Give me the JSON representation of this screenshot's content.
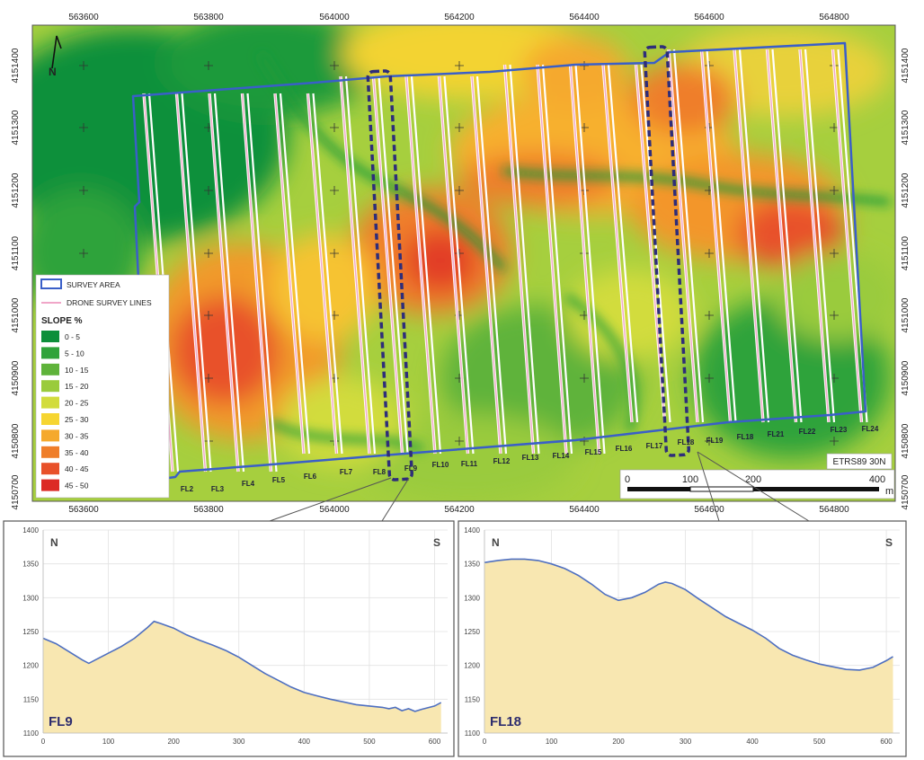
{
  "map": {
    "x_ticks": [
      "563600",
      "563800",
      "564000",
      "564200",
      "564400",
      "564600",
      "564800"
    ],
    "y_ticks": [
      "4151400",
      "4151300",
      "4151200",
      "4151100",
      "4151000",
      "4150900",
      "4150800",
      "4150700"
    ],
    "north_label": "N",
    "crs_label": "ETRS89 30N",
    "flight_lines": [
      "FL2",
      "FL3",
      "FL4",
      "FL5",
      "FL6",
      "FL7",
      "FL8",
      "FL9",
      "FL10",
      "FL11",
      "FL12",
      "FL13",
      "FL14",
      "FL15",
      "FL16",
      "FL17",
      "FL18",
      "FL19",
      "FL18",
      "FL21",
      "FL22",
      "FL23",
      "FL24"
    ],
    "highlighted_lines": [
      "FL9",
      "FL18"
    ],
    "scale_bar": {
      "labels": [
        "0",
        "100",
        "200",
        "400"
      ],
      "unit": "m"
    },
    "colors": {
      "survey_area": "#3a5fc8",
      "survey_lines": "#f0a6c8",
      "highlight": "#2e2d7a"
    }
  },
  "legend": {
    "survey_area_label": "SURVEY AREA",
    "survey_lines_label": "DRONE SURVEY LINES",
    "slope_title": "SLOPE %",
    "classes": [
      {
        "label": "0 - 5",
        "color": "#0d8f3a"
      },
      {
        "label": "5 - 10",
        "color": "#2fa33a"
      },
      {
        "label": "10 - 15",
        "color": "#5fb33a"
      },
      {
        "label": "15 - 20",
        "color": "#9acb3c"
      },
      {
        "label": "20 - 25",
        "color": "#d2dc3c"
      },
      {
        "label": "25 - 30",
        "color": "#f6d531"
      },
      {
        "label": "30 - 35",
        "color": "#f5a92d"
      },
      {
        "label": "35 - 40",
        "color": "#ef7e2a"
      },
      {
        "label": "40 - 45",
        "color": "#e8512a"
      },
      {
        "label": "45 - 50",
        "color": "#dc2a25"
      }
    ]
  },
  "chart_data": [
    {
      "type": "area",
      "name_label": "FL9",
      "left_label": "N",
      "right_label": "S",
      "x": [
        0,
        20,
        40,
        60,
        70,
        80,
        100,
        120,
        140,
        160,
        170,
        180,
        200,
        220,
        240,
        260,
        280,
        300,
        320,
        340,
        360,
        380,
        400,
        420,
        440,
        460,
        480,
        500,
        520,
        530,
        540,
        550,
        560,
        570,
        580,
        600,
        610
      ],
      "y": [
        1240,
        1232,
        1220,
        1208,
        1203,
        1208,
        1218,
        1228,
        1240,
        1256,
        1265,
        1262,
        1255,
        1245,
        1237,
        1230,
        1222,
        1212,
        1200,
        1188,
        1178,
        1168,
        1160,
        1155,
        1150,
        1146,
        1142,
        1140,
        1138,
        1136,
        1138,
        1133,
        1136,
        1132,
        1135,
        1140,
        1145
      ],
      "xlim": [
        0,
        620
      ],
      "ylim": [
        1100,
        1400
      ],
      "x_ticks": [
        0,
        100,
        200,
        300,
        400,
        500,
        600
      ],
      "y_ticks": [
        1100,
        1150,
        1200,
        1250,
        1300,
        1350,
        1400
      ],
      "colors": {
        "fill": "#f8e7b1",
        "line": "#4e6fc0"
      }
    },
    {
      "type": "area",
      "name_label": "FL18",
      "left_label": "N",
      "right_label": "S",
      "x": [
        0,
        20,
        40,
        60,
        80,
        100,
        120,
        140,
        160,
        180,
        200,
        220,
        240,
        260,
        270,
        280,
        300,
        320,
        340,
        360,
        380,
        400,
        420,
        440,
        460,
        480,
        500,
        520,
        540,
        560,
        580,
        600,
        610
      ],
      "y": [
        1352,
        1355,
        1357,
        1357,
        1355,
        1350,
        1343,
        1333,
        1320,
        1305,
        1296,
        1300,
        1308,
        1320,
        1323,
        1321,
        1312,
        1298,
        1285,
        1272,
        1262,
        1252,
        1240,
        1225,
        1215,
        1208,
        1202,
        1198,
        1194,
        1193,
        1197,
        1207,
        1213
      ],
      "xlim": [
        0,
        620
      ],
      "ylim": [
        1100,
        1400
      ],
      "x_ticks": [
        0,
        100,
        200,
        300,
        400,
        500,
        600
      ],
      "y_ticks": [
        1100,
        1150,
        1200,
        1250,
        1300,
        1350,
        1400
      ],
      "colors": {
        "fill": "#f8e7b1",
        "line": "#4e6fc0"
      }
    }
  ]
}
